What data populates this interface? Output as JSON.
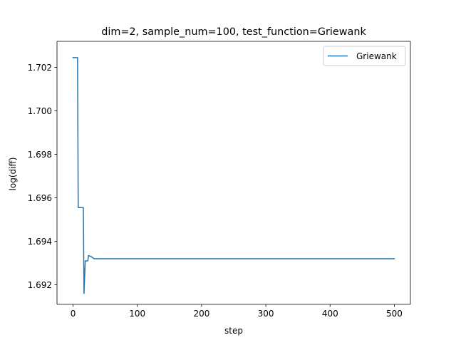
{
  "chart_data": {
    "type": "line",
    "title": "dim=2, sample_num=100, test_function=Griewank",
    "xlabel": "step",
    "ylabel": "log(diff)",
    "xlim": [
      -25,
      525
    ],
    "ylim": [
      1.6911,
      1.7032
    ],
    "xticks": [
      0,
      100,
      200,
      300,
      400,
      500
    ],
    "xtick_labels": [
      "0",
      "100",
      "200",
      "300",
      "400",
      "500"
    ],
    "yticks": [
      1.692,
      1.694,
      1.696,
      1.698,
      1.7,
      1.702
    ],
    "ytick_labels": [
      "1.692",
      "1.694",
      "1.696",
      "1.698",
      "1.700",
      "1.702"
    ],
    "grid": false,
    "legend_position": "upper right",
    "series": [
      {
        "name": "Griewank",
        "color": "#1f77b4",
        "points": [
          [
            0,
            1.70245
          ],
          [
            7,
            1.70245
          ],
          [
            8,
            1.69555
          ],
          [
            16,
            1.69555
          ],
          [
            17,
            1.6916
          ],
          [
            19,
            1.6931
          ],
          [
            23,
            1.6931
          ],
          [
            24,
            1.69335
          ],
          [
            28,
            1.6933
          ],
          [
            33,
            1.6932
          ],
          [
            500,
            1.6932
          ]
        ]
      }
    ]
  }
}
